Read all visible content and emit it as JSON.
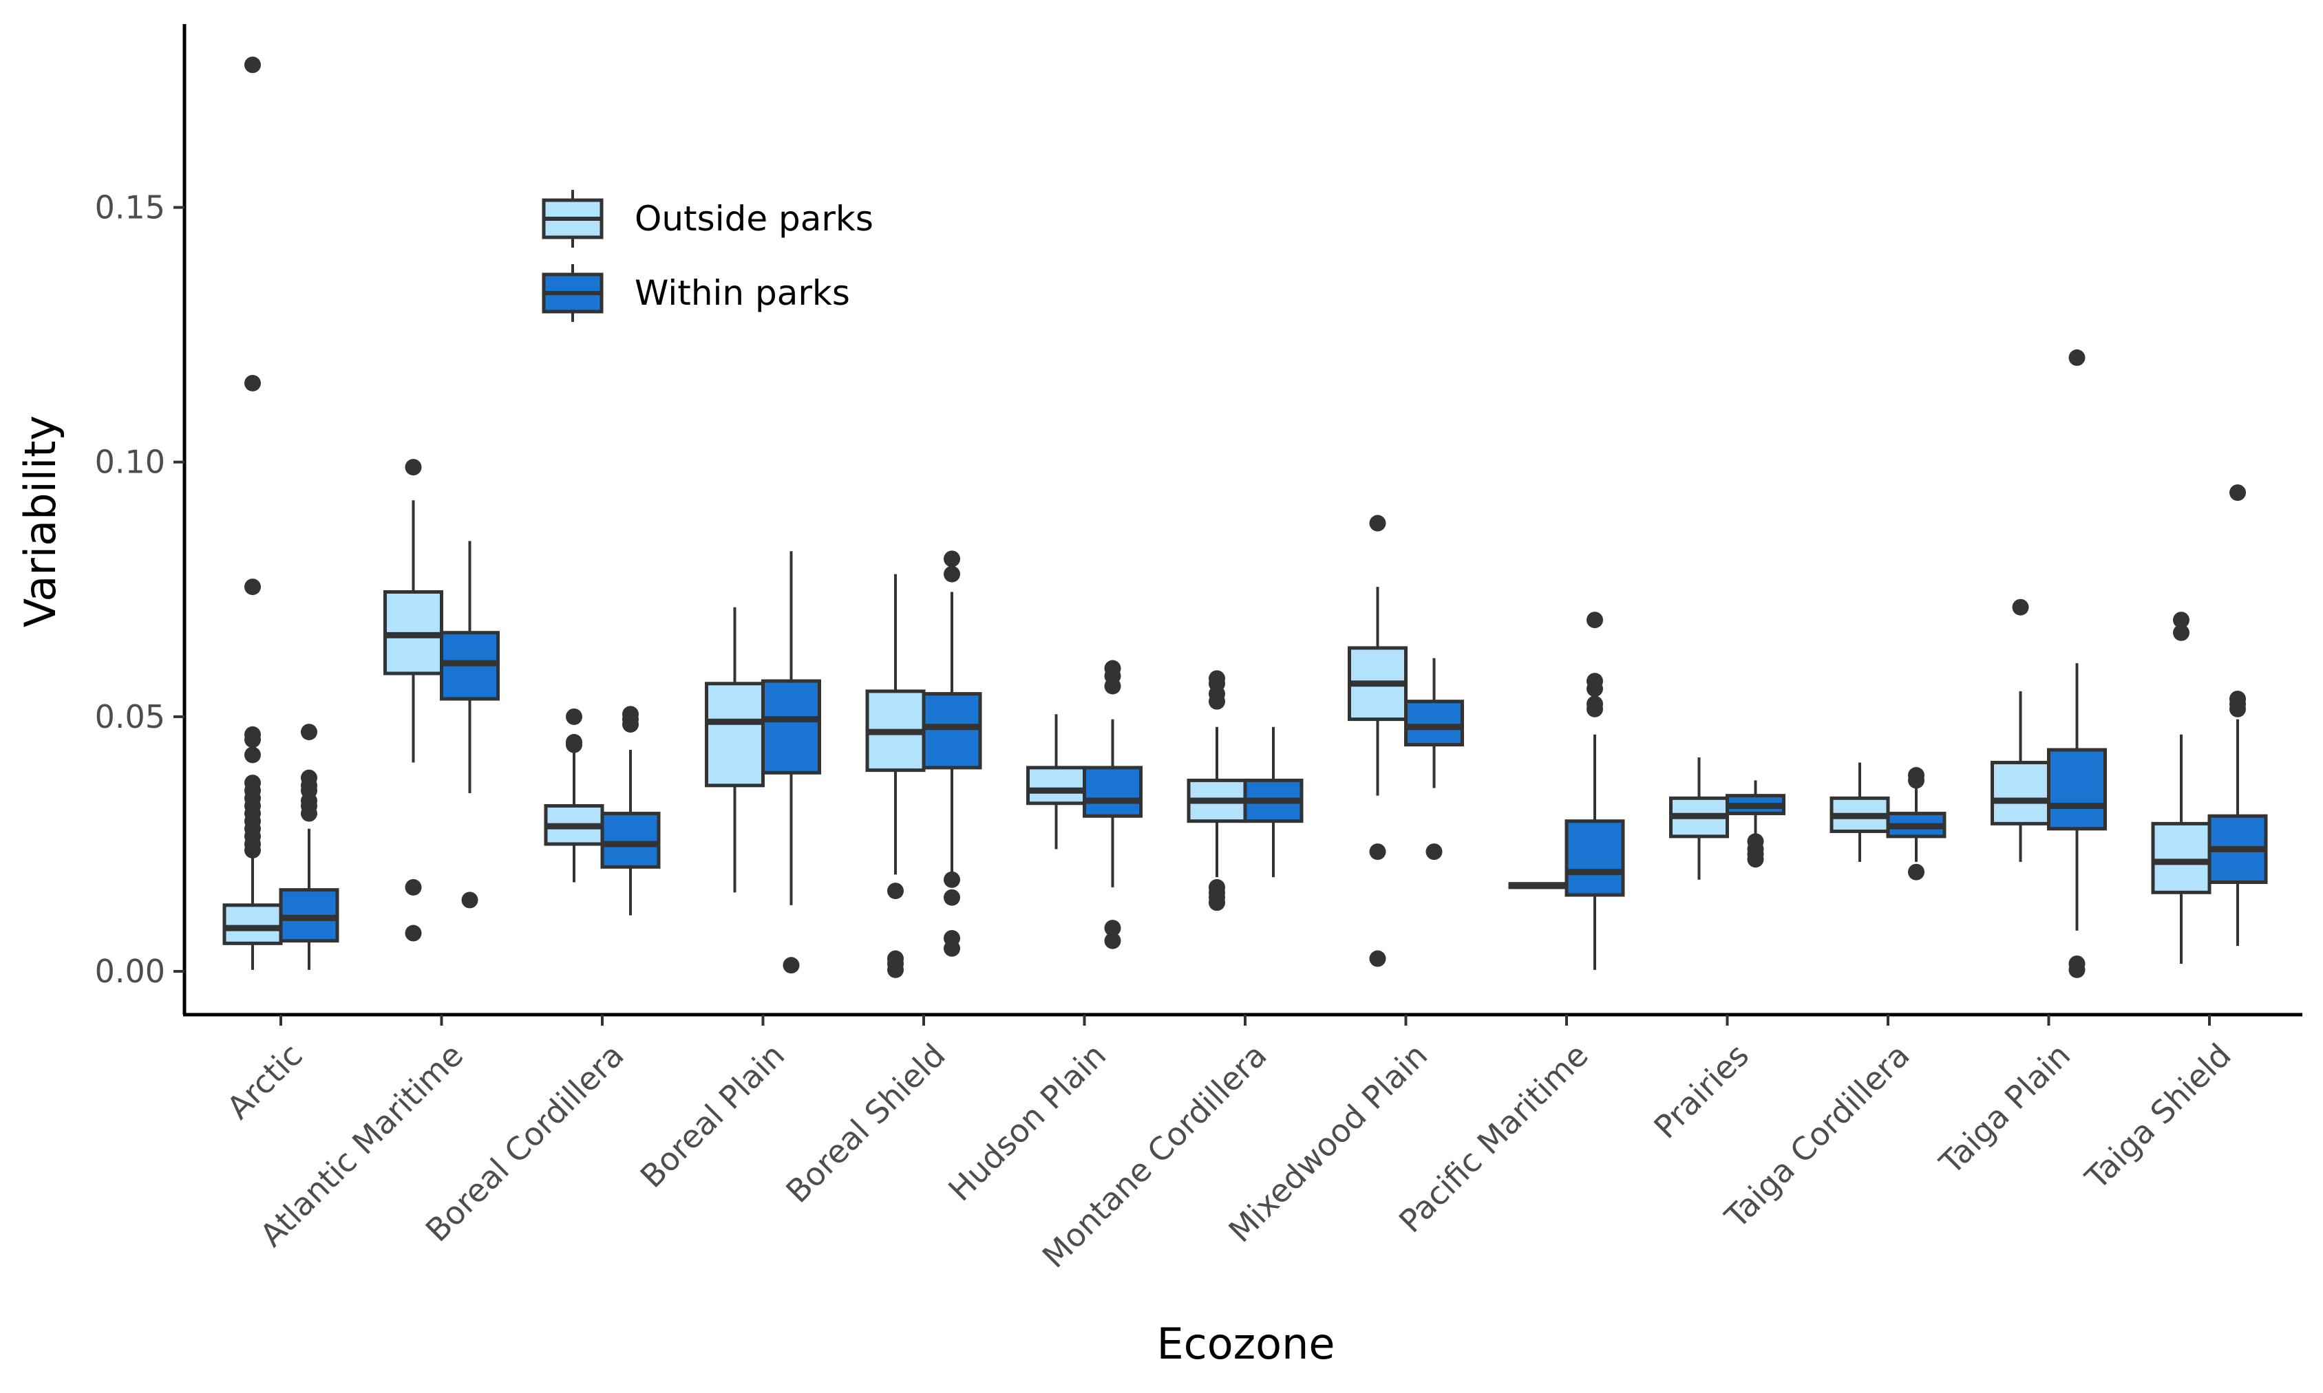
{
  "chart_data": {
    "type": "boxplot",
    "xlabel": "Ecozone",
    "ylabel": "Variability",
    "ylim": [
      -0.0085,
      0.186
    ],
    "yticks": [
      "0.00",
      "0.05",
      "0.10",
      "0.15"
    ],
    "ytick_values": [
      0.0,
      0.05,
      0.1,
      0.15
    ],
    "grid": false,
    "legend_position": "top-left",
    "categories": [
      "Arctic",
      "Atlantic Maritime",
      "Boreal Cordillera",
      "Boreal Plain",
      "Boreal Shield",
      "Hudson Plain",
      "Montane Cordillera",
      "Mixedwood Plain",
      "Pacific Maritime",
      "Prairies",
      "Taiga Cordillera",
      "Taiga Plain",
      "Taiga Shield"
    ],
    "series": [
      {
        "name": "Outside parks",
        "color": "#b3e3fc",
        "boxes": [
          {
            "category": "Arctic",
            "whisker_low": 0.0003,
            "q1": 0.0055,
            "median": 0.0085,
            "q3": 0.013,
            "whisker_high": 0.0225,
            "outliers": [
              0.178,
              0.1155,
              0.0755,
              0.0465,
              0.0455,
              0.0425,
              0.037,
              0.0355,
              0.034,
              0.0325,
              0.031,
              0.0295,
              0.028,
              0.0265,
              0.025,
              0.0238
            ]
          },
          {
            "category": "Atlantic Maritime",
            "whisker_low": 0.041,
            "q1": 0.0585,
            "median": 0.066,
            "q3": 0.0745,
            "whisker_high": 0.0925,
            "outliers": [
              0.099,
              0.0165,
              0.0075
            ]
          },
          {
            "category": "Boreal Cordillera",
            "whisker_low": 0.0175,
            "q1": 0.025,
            "median": 0.0285,
            "q3": 0.0325,
            "whisker_high": 0.0435,
            "outliers": [
              0.05,
              0.045,
              0.0445
            ]
          },
          {
            "category": "Boreal Plain",
            "whisker_low": 0.0155,
            "q1": 0.0365,
            "median": 0.049,
            "q3": 0.0565,
            "whisker_high": 0.0715,
            "outliers": []
          },
          {
            "category": "Boreal Shield",
            "whisker_low": 0.019,
            "q1": 0.0395,
            "median": 0.047,
            "q3": 0.055,
            "whisker_high": 0.078,
            "outliers": [
              0.0158,
              0.0025,
              0.0015,
              0.0003
            ]
          },
          {
            "category": "Hudson Plain",
            "whisker_low": 0.024,
            "q1": 0.033,
            "median": 0.0355,
            "q3": 0.04,
            "whisker_high": 0.0505,
            "outliers": []
          },
          {
            "category": "Montane Cordillera",
            "whisker_low": 0.0185,
            "q1": 0.0295,
            "median": 0.0335,
            "q3": 0.0375,
            "whisker_high": 0.048,
            "outliers": [
              0.0575,
              0.0565,
              0.0545,
              0.053,
              0.0165,
              0.0155,
              0.0145,
              0.0135
            ]
          },
          {
            "category": "Mixedwood Plain",
            "whisker_low": 0.0345,
            "q1": 0.0495,
            "median": 0.0565,
            "q3": 0.0635,
            "whisker_high": 0.0755,
            "outliers": [
              0.088,
              0.0235,
              0.0025
            ]
          },
          {
            "category": "Pacific Maritime",
            "whisker_low": 0.0165,
            "q1": 0.0165,
            "median": 0.0168,
            "q3": 0.0172,
            "whisker_high": 0.0172,
            "outliers": []
          },
          {
            "category": "Prairies",
            "whisker_low": 0.018,
            "q1": 0.0265,
            "median": 0.0305,
            "q3": 0.034,
            "whisker_high": 0.042,
            "outliers": []
          },
          {
            "category": "Taiga Cordillera",
            "whisker_low": 0.0215,
            "q1": 0.0275,
            "median": 0.0305,
            "q3": 0.034,
            "whisker_high": 0.041,
            "outliers": []
          },
          {
            "category": "Taiga Plain",
            "whisker_low": 0.0215,
            "q1": 0.029,
            "median": 0.0335,
            "q3": 0.041,
            "whisker_high": 0.055,
            "outliers": [
              0.0715
            ]
          },
          {
            "category": "Taiga Shield",
            "whisker_low": 0.0015,
            "q1": 0.0155,
            "median": 0.0215,
            "q3": 0.029,
            "whisker_high": 0.0465,
            "outliers": [
              0.069,
              0.0665
            ]
          }
        ]
      },
      {
        "name": "Within parks",
        "color": "#1a75d2",
        "boxes": [
          {
            "category": "Arctic",
            "whisker_low": 0.0003,
            "q1": 0.006,
            "median": 0.0105,
            "q3": 0.016,
            "whisker_high": 0.028,
            "outliers": [
              0.047,
              0.038,
              0.0365,
              0.0355,
              0.0335,
              0.0325,
              0.031
            ]
          },
          {
            "category": "Atlantic Maritime",
            "whisker_low": 0.035,
            "q1": 0.0535,
            "median": 0.0605,
            "q3": 0.0665,
            "whisker_high": 0.0845,
            "outliers": [
              0.014
            ]
          },
          {
            "category": "Boreal Cordillera",
            "whisker_low": 0.011,
            "q1": 0.0205,
            "median": 0.025,
            "q3": 0.031,
            "whisker_high": 0.0435,
            "outliers": [
              0.0505,
              0.0495,
              0.0485
            ]
          },
          {
            "category": "Boreal Plain",
            "whisker_low": 0.013,
            "q1": 0.039,
            "median": 0.0495,
            "q3": 0.057,
            "whisker_high": 0.0825,
            "outliers": [
              0.0012
            ]
          },
          {
            "category": "Boreal Shield",
            "whisker_low": 0.0195,
            "q1": 0.04,
            "median": 0.048,
            "q3": 0.0545,
            "whisker_high": 0.0745,
            "outliers": [
              0.081,
              0.078,
              0.018,
              0.0145,
              0.0065,
              0.0045
            ]
          },
          {
            "category": "Hudson Plain",
            "whisker_low": 0.0165,
            "q1": 0.0305,
            "median": 0.0335,
            "q3": 0.04,
            "whisker_high": 0.0495,
            "outliers": [
              0.0595,
              0.058,
              0.056,
              0.0085,
              0.006
            ]
          },
          {
            "category": "Montane Cordillera",
            "whisker_low": 0.0185,
            "q1": 0.0295,
            "median": 0.0335,
            "q3": 0.0375,
            "whisker_high": 0.048,
            "outliers": []
          },
          {
            "category": "Mixedwood Plain",
            "whisker_low": 0.036,
            "q1": 0.0445,
            "median": 0.048,
            "q3": 0.053,
            "whisker_high": 0.0615,
            "outliers": [
              0.0235
            ]
          },
          {
            "category": "Pacific Maritime",
            "whisker_low": 0.0003,
            "q1": 0.015,
            "median": 0.0195,
            "q3": 0.0295,
            "whisker_high": 0.0465,
            "outliers": [
              0.069,
              0.057,
              0.0555,
              0.0525,
              0.0515
            ]
          },
          {
            "category": "Prairies",
            "whisker_low": 0.0265,
            "q1": 0.031,
            "median": 0.0325,
            "q3": 0.0345,
            "whisker_high": 0.0375,
            "outliers": [
              0.0255,
              0.024,
              0.023,
              0.022
            ]
          },
          {
            "category": "Taiga Cordillera",
            "whisker_low": 0.0215,
            "q1": 0.0265,
            "median": 0.0285,
            "q3": 0.031,
            "whisker_high": 0.0365,
            "outliers": [
              0.0385,
              0.0375,
              0.0195
            ]
          },
          {
            "category": "Taiga Plain",
            "whisker_low": 0.008,
            "q1": 0.028,
            "median": 0.0325,
            "q3": 0.0435,
            "whisker_high": 0.0605,
            "outliers": [
              0.1205,
              0.0015,
              0.0003
            ]
          },
          {
            "category": "Taiga Shield",
            "whisker_low": 0.005,
            "q1": 0.0175,
            "median": 0.024,
            "q3": 0.0305,
            "whisker_high": 0.0495,
            "outliers": [
              0.094,
              0.0535,
              0.0525,
              0.0515
            ]
          }
        ]
      }
    ]
  }
}
